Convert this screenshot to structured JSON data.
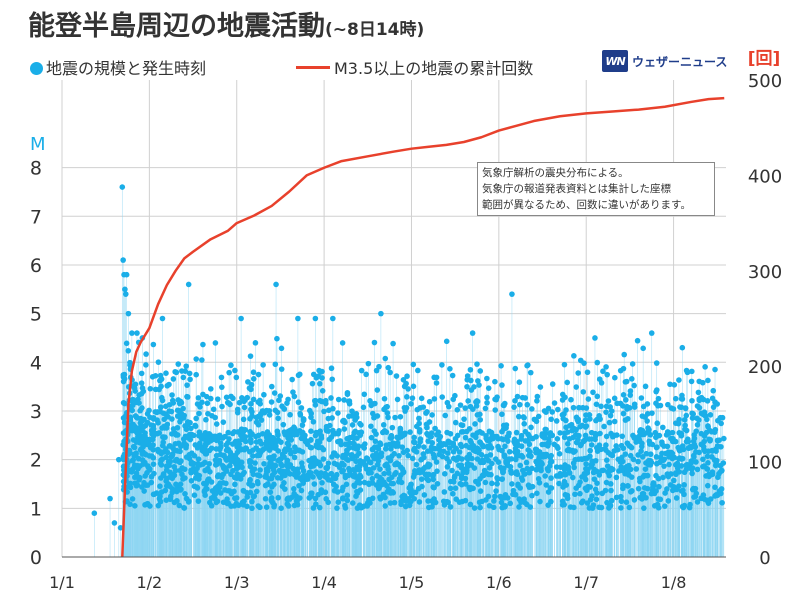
{
  "title": {
    "main": "能登半島周辺の地震活動",
    "sub": "(~8日14時)"
  },
  "legend": {
    "dots_label": "地震の規模と発生時刻",
    "line_label": "M3.5以上の地震の累計回数"
  },
  "logo": {
    "badge": "WN",
    "name": "ウェザーニュース"
  },
  "note": {
    "lines": [
      "気象庁解析の震央分布による。",
      "気象庁の報道発表資料とは集計した座標",
      "範囲が異なるため、回数に違いがあります。"
    ]
  },
  "colors": {
    "dots": "#1aaee8",
    "stems": "#8ed6f2",
    "cumulative_line": "#e8412c",
    "grid": "#d0d0d0",
    "left_axis_unit": "#1aaee8",
    "right_axis_unit": "#e8412c"
  },
  "chart_data": {
    "type": "scatter",
    "x_axis": {
      "unit": "day-of-January",
      "range": [
        1,
        8.6
      ],
      "tick_values": [
        1,
        2,
        3,
        4,
        5,
        6,
        7,
        8
      ],
      "tick_labels": [
        "1/1",
        "1/2",
        "1/3",
        "1/4",
        "1/5",
        "1/6",
        "1/7",
        "1/8"
      ]
    },
    "y_left": {
      "unit_label": "M",
      "range": [
        0,
        9.8
      ],
      "tick_values": [
        0,
        1,
        2,
        3,
        4,
        5,
        6,
        7,
        8
      ]
    },
    "y_right": {
      "unit_label": "[回]",
      "range": [
        0,
        500
      ],
      "tick_values": [
        0,
        100,
        200,
        300,
        400,
        500
      ]
    },
    "grid": true,
    "notable_events": [
      {
        "x": 1.37,
        "m": 0.9
      },
      {
        "x": 1.55,
        "m": 1.2
      },
      {
        "x": 1.6,
        "m": 0.7
      },
      {
        "x": 1.65,
        "m": 2.0
      },
      {
        "x": 1.67,
        "m": 0.6
      },
      {
        "x": 1.69,
        "m": 7.6
      },
      {
        "x": 1.7,
        "m": 6.1
      },
      {
        "x": 1.71,
        "m": 5.8
      },
      {
        "x": 1.72,
        "m": 5.5
      },
      {
        "x": 1.73,
        "m": 5.4
      },
      {
        "x": 1.74,
        "m": 5.8
      },
      {
        "x": 1.76,
        "m": 5.0
      },
      {
        "x": 1.8,
        "m": 4.6
      },
      {
        "x": 1.92,
        "m": 4.5
      },
      {
        "x": 2.15,
        "m": 4.9
      },
      {
        "x": 2.45,
        "m": 5.6
      },
      {
        "x": 3.05,
        "m": 4.9
      },
      {
        "x": 3.45,
        "m": 5.6
      },
      {
        "x": 3.7,
        "m": 4.9
      },
      {
        "x": 3.9,
        "m": 4.9
      },
      {
        "x": 4.1,
        "m": 4.9
      },
      {
        "x": 4.65,
        "m": 5.0
      },
      {
        "x": 5.7,
        "m": 4.6
      },
      {
        "x": 6.15,
        "m": 5.4
      },
      {
        "x": 7.1,
        "m": 4.5
      },
      {
        "x": 7.75,
        "m": 4.6
      },
      {
        "x": 8.1,
        "m": 4.3
      }
    ],
    "cumulative_count": {
      "x": [
        1.69,
        1.72,
        1.76,
        1.8,
        1.85,
        1.9,
        2.0,
        2.1,
        2.2,
        2.3,
        2.4,
        2.5,
        2.7,
        2.9,
        3.0,
        3.2,
        3.4,
        3.6,
        3.8,
        4.0,
        4.2,
        4.5,
        4.8,
        5.0,
        5.2,
        5.4,
        5.6,
        5.8,
        6.0,
        6.2,
        6.4,
        6.7,
        7.0,
        7.3,
        7.6,
        7.9,
        8.2,
        8.4,
        8.58
      ],
      "y": [
        0,
        70,
        160,
        195,
        215,
        225,
        240,
        265,
        285,
        300,
        313,
        320,
        333,
        342,
        350,
        358,
        368,
        383,
        400,
        408,
        415,
        420,
        425,
        428,
        430,
        432,
        435,
        440,
        447,
        452,
        457,
        462,
        465,
        467,
        469,
        472,
        477,
        480,
        481
      ]
    }
  }
}
